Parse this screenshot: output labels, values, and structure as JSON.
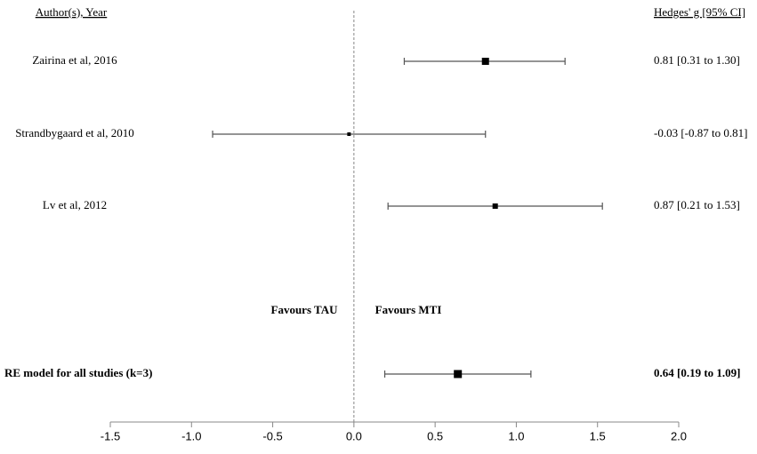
{
  "chart_data": {
    "type": "forest",
    "left_header": "Author(s), Year",
    "right_header": "Hedges' g [95% CI]",
    "studies": [
      {
        "name": "Zairina et al,  2016",
        "estimate": 0.81,
        "lower": 0.31,
        "upper": 1.3,
        "label": "0.81 [0.31 to 1.30]"
      },
      {
        "name": "Strandbygaard et al, 2010",
        "estimate": -0.03,
        "lower": -0.87,
        "upper": 0.81,
        "label": "-0.03 [-0.87 to 0.81]"
      },
      {
        "name": "Lv et al, 2012",
        "estimate": 0.87,
        "lower": 0.21,
        "upper": 1.53,
        "label": "0.87 [0.21 to 1.53]"
      }
    ],
    "summary": {
      "name": "RE model for all studies (k=3)",
      "estimate": 0.64,
      "lower": 0.19,
      "upper": 1.09,
      "label": "0.64 [0.19 to 1.09]"
    },
    "favours_left": "Favours TAU",
    "favours_right": "Favours MTI",
    "reference_line": 0,
    "xlim": [
      -1.5,
      2.0
    ],
    "xticks": [
      -1.5,
      {
        "value": -1.0,
        "label": "-1.0"
      },
      -0.5,
      {
        "value": 0,
        "label": "0.0"
      },
      0.5,
      {
        "value": 1.0,
        "label": "1.0"
      },
      1.5,
      {
        "value": 2.0,
        "label": "2.0"
      }
    ],
    "color": "#000000"
  }
}
